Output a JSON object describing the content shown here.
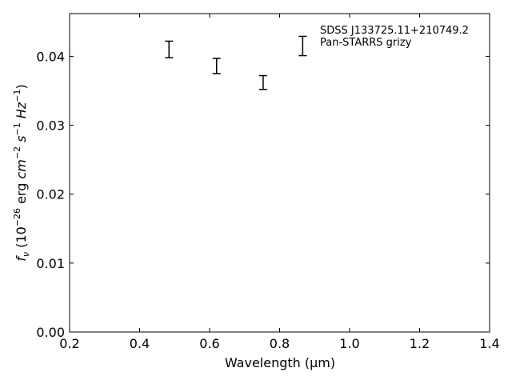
{
  "chart_data": {
    "type": "scatter",
    "title": "",
    "xlabel": "Wavelength (μm)",
    "ylabel": {
      "parts": [
        "f",
        "ν",
        " (10",
        "−26",
        " erg ",
        "cm",
        "−2",
        " s",
        "−1",
        " Hz",
        "−1",
        ")"
      ]
    },
    "xlim": [
      0.2,
      1.4
    ],
    "ylim": [
      0.0,
      0.0462
    ],
    "xticks": [
      0.2,
      0.4,
      0.6,
      0.8,
      1.0,
      1.2,
      1.4
    ],
    "xtick_labels": [
      "0.2",
      "0.4",
      "0.6",
      "0.8",
      "1.0",
      "1.2",
      "1.4"
    ],
    "yticks": [
      0.0,
      0.01,
      0.02,
      0.03,
      0.04
    ],
    "ytick_labels": [
      "0.00",
      "0.01",
      "0.02",
      "0.03",
      "0.04"
    ],
    "grid": false,
    "legend_position": "top-right",
    "legend_lines": [
      "SDSS J133725.11+210749.2",
      "Pan-STARRS grizy"
    ],
    "series": [
      {
        "marker": "errorbar",
        "color": "#000000",
        "points": [
          {
            "x": 0.484,
            "y": 0.041,
            "yerr": 0.0012
          },
          {
            "x": 0.62,
            "y": 0.0386,
            "yerr": 0.0011
          },
          {
            "x": 0.753,
            "y": 0.0362,
            "yerr": 0.001
          },
          {
            "x": 0.866,
            "y": 0.0415,
            "yerr": 0.0014
          }
        ]
      }
    ]
  }
}
